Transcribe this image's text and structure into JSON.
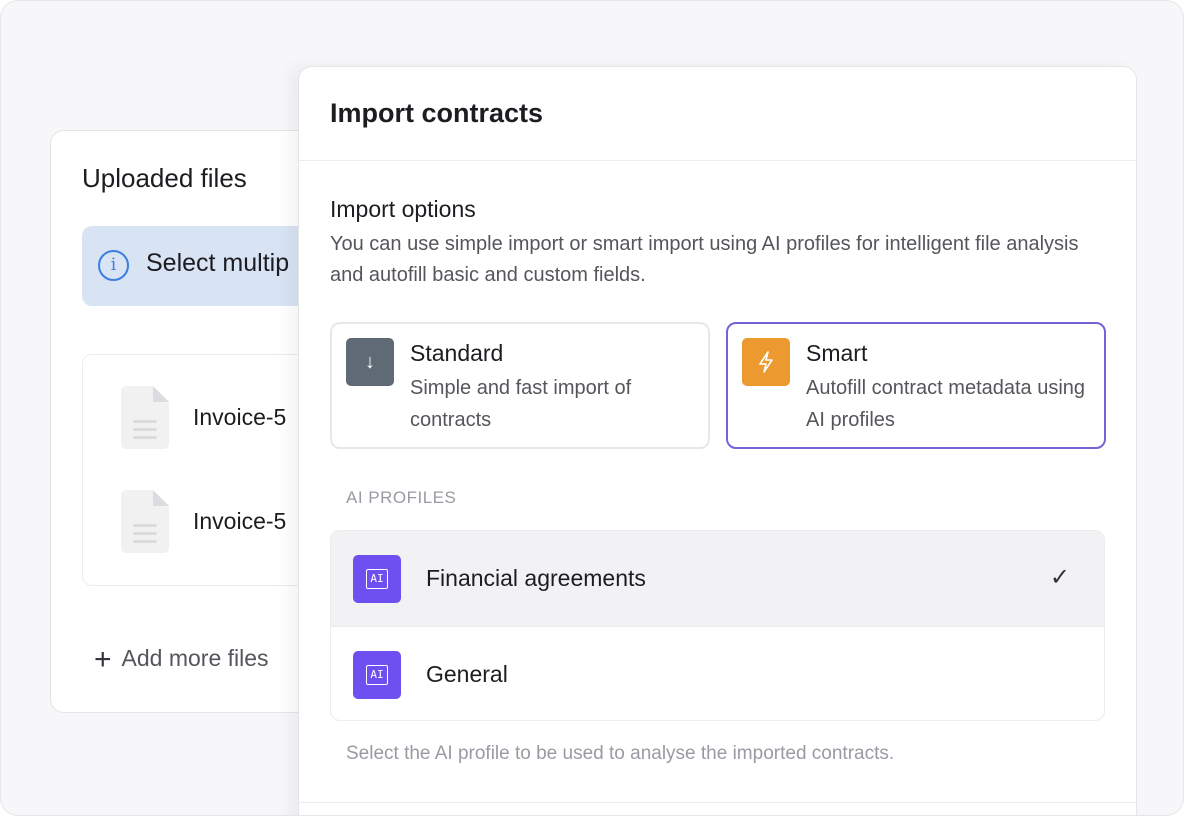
{
  "uploaded": {
    "title": "Uploaded files",
    "info_text": "Select multip",
    "files": [
      "Invoice-5",
      "Invoice-5"
    ],
    "add_label": "Add more files"
  },
  "modal": {
    "title": "Import contracts",
    "options_title": "Import options",
    "options_description": "You can use simple import or smart import using AI profiles for intelligent file analysis and autofill basic and custom fields.",
    "options": [
      {
        "title": "Standard",
        "description": "Simple and fast import of contracts",
        "icon": "arrow-down-icon",
        "color": "#5f6a75",
        "selected": false
      },
      {
        "title": "Smart",
        "description": "Autofill contract metadata using AI profiles",
        "icon": "lightning-icon",
        "color": "#ec9a30",
        "selected": true
      }
    ],
    "profiles_label": "AI PROFILES",
    "profiles": [
      {
        "label": "Financial agreements",
        "icon_text": "AI",
        "selected": true
      },
      {
        "label": "General",
        "icon_text": "AI",
        "selected": false
      }
    ],
    "hint": "Select the AI profile to be used to analyse the imported contracts."
  },
  "colors": {
    "accent": "#7463d8",
    "ai_icon": "#6e4ff0",
    "info_bg": "#d8e3f4"
  }
}
